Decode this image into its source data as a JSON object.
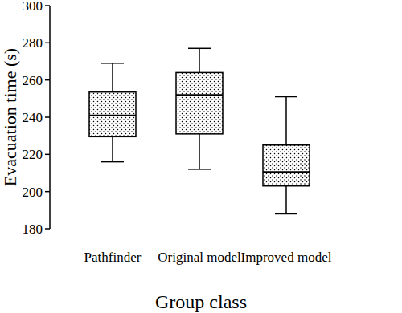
{
  "chart_data": {
    "type": "box",
    "x_label": "Group class",
    "y_label": "Evacuation time (s)",
    "categories": [
      "Pathfinder",
      "Original model",
      "Improved model"
    ],
    "min": [
      216,
      212,
      188
    ],
    "q1": [
      229.5,
      231,
      203
    ],
    "median": [
      241,
      252,
      210.5
    ],
    "q3": [
      253.5,
      264,
      225
    ],
    "max": [
      269,
      277,
      251
    ],
    "color": "#000000",
    "ylim": [
      180,
      300
    ],
    "yticks": [
      180,
      200,
      220,
      240,
      260,
      280,
      300
    ],
    "grid": false
  }
}
